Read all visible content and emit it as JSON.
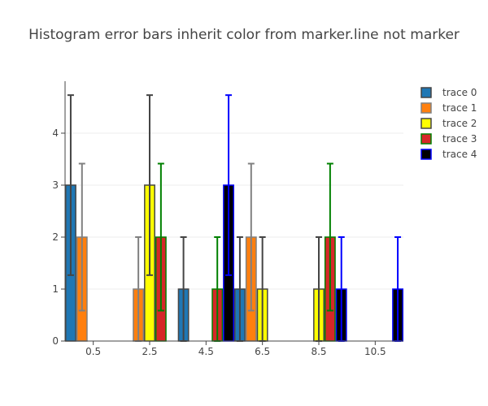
{
  "chart_data": {
    "type": "bar",
    "title": "Histogram error bars inherit color from marker.line not marker",
    "xlabel": "",
    "ylabel": "",
    "x_ticks": [
      0.5,
      2.5,
      4.5,
      6.5,
      8.5,
      10.5
    ],
    "ylim": [
      0,
      5
    ],
    "y_ticks": [
      0,
      1,
      2,
      3,
      4
    ],
    "bin_width": 2,
    "grid": true,
    "legend": "top-right",
    "series": [
      {
        "name": "trace 0",
        "fill": "#1f77b4",
        "line": "#444444",
        "error_color": "#444444",
        "bins": [
          0.5,
          4.5,
          6.5
        ],
        "values": [
          3,
          1,
          1
        ],
        "errors": [
          1.7320508,
          1,
          1
        ]
      },
      {
        "name": "trace 1",
        "fill": "#ff7f0e",
        "line": "#808080",
        "error_color": "#808080",
        "bins": [
          0.5,
          2.5,
          6.5
        ],
        "values": [
          2,
          1,
          2
        ],
        "errors": [
          1.4142136,
          1,
          1.4142136
        ]
      },
      {
        "name": "trace 2",
        "fill": "#ffff00",
        "line": "#444444",
        "error_color": "#444444",
        "bins": [
          2.5,
          6.5,
          8.5
        ],
        "values": [
          3,
          1,
          1
        ],
        "errors": [
          1.7320508,
          1,
          1
        ]
      },
      {
        "name": "trace 3",
        "fill": "#d62728",
        "line": "#008000",
        "error_color": "#008000",
        "bins": [
          2.5,
          4.5,
          8.5
        ],
        "values": [
          2,
          1,
          2
        ],
        "errors": [
          1.4142136,
          1,
          1.4142136
        ]
      },
      {
        "name": "trace 4",
        "fill": "#000000",
        "line": "#0000ff",
        "error_color": "#0000ff",
        "bins": [
          4.5,
          8.5,
          10.5
        ],
        "values": [
          3,
          1,
          1
        ],
        "errors": [
          1.7320508,
          1,
          1
        ]
      }
    ]
  }
}
